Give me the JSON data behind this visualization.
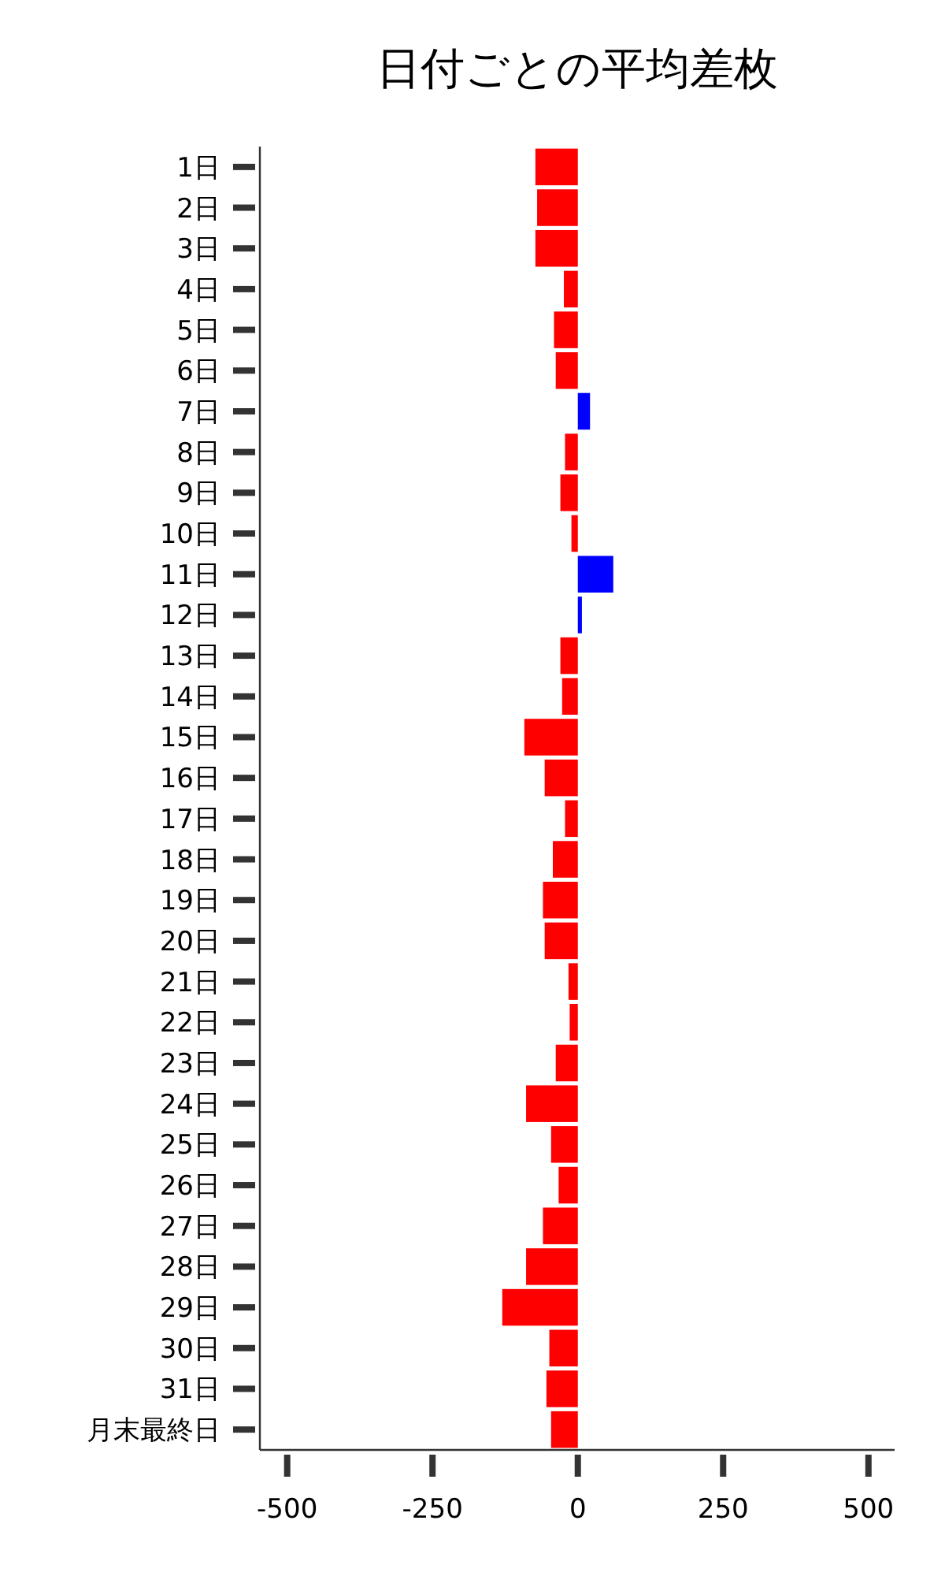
{
  "chart_data": {
    "type": "bar",
    "orientation": "horizontal",
    "title": "日付ごとの平均差枚",
    "categories": [
      "1日",
      "2日",
      "3日",
      "4日",
      "5日",
      "6日",
      "7日",
      "8日",
      "9日",
      "10日",
      "11日",
      "12日",
      "13日",
      "14日",
      "15日",
      "16日",
      "17日",
      "18日",
      "19日",
      "20日",
      "21日",
      "22日",
      "23日",
      "24日",
      "25日",
      "26日",
      "27日",
      "28日",
      "29日",
      "30日",
      "31日",
      "月末最終日"
    ],
    "values": [
      -73,
      -70,
      -73,
      -24,
      -41,
      -38,
      21,
      -22,
      -30,
      -11,
      61,
      7,
      -30,
      -27,
      -92,
      -57,
      -22,
      -43,
      -60,
      -57,
      -16,
      -14,
      -38,
      -89,
      -46,
      -33,
      -60,
      -89,
      -130,
      -49,
      -54,
      -46
    ],
    "colors": [
      "#ff0000",
      "#ff0000",
      "#ff0000",
      "#ff0000",
      "#ff0000",
      "#ff0000",
      "#0000ff",
      "#ff0000",
      "#ff0000",
      "#ff0000",
      "#0000ff",
      "#0000ff",
      "#ff0000",
      "#ff0000",
      "#ff0000",
      "#ff0000",
      "#ff0000",
      "#ff0000",
      "#ff0000",
      "#ff0000",
      "#ff0000",
      "#ff0000",
      "#ff0000",
      "#ff0000",
      "#ff0000",
      "#ff0000",
      "#ff0000",
      "#ff0000",
      "#ff0000",
      "#ff0000",
      "#ff0000",
      "#ff0000"
    ],
    "xlim": [
      -547,
      545
    ],
    "xticks": [
      {
        "value": -500,
        "label": "-500"
      },
      {
        "value": -250,
        "label": "-250"
      },
      0,
      250,
      500
    ],
    "grid": false
  }
}
